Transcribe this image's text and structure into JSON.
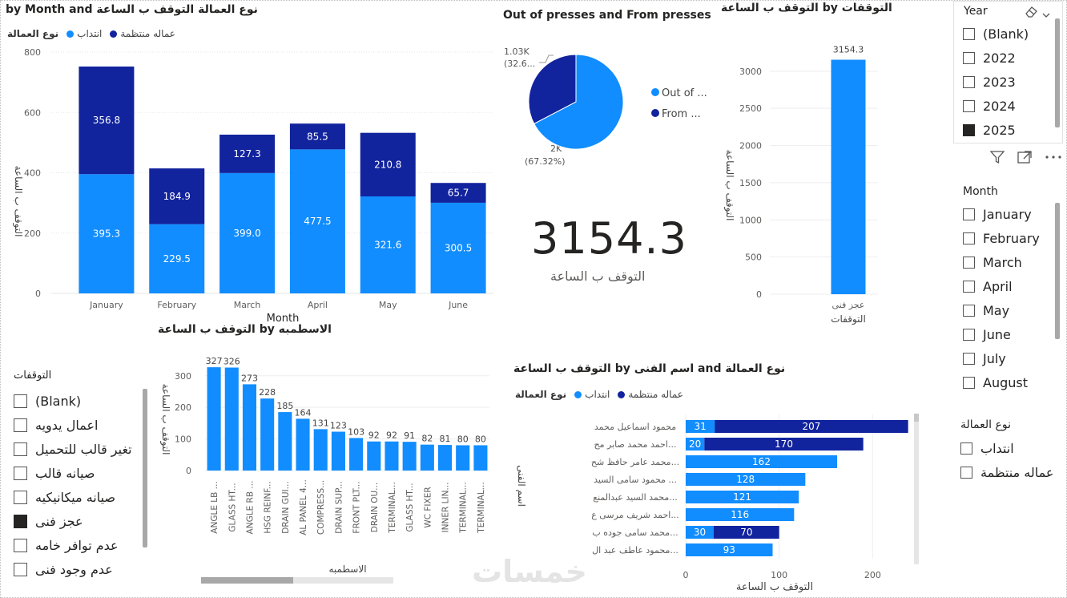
{
  "monthly_chart": {
    "title": "نوع العمالة التوقف ب الساعة by Month and",
    "legend_title": "نوع العمالة",
    "legend": [
      {
        "label": "انتداب",
        "color": "#118DFF"
      },
      {
        "label": "عماله منتظمة",
        "color": "#12239E"
      }
    ],
    "ylabel": "التوقف ب الساعة",
    "xlabel": "Month"
  },
  "pie_chart": {
    "title": "Out of presses and From presses",
    "legend": [
      {
        "label": "Out of ...",
        "color": "#118DFF"
      },
      {
        "label": "From ...",
        "color": "#12239E"
      }
    ],
    "label_from_value": "1.03K",
    "label_from_pct": "(32.6...",
    "label_out_value": "2K",
    "label_out_pct": "(67.32%)"
  },
  "kpi": {
    "value": "3154.3",
    "label": "التوقف ب الساعة"
  },
  "stops_chart": {
    "title": "التوقفات by التوقف ب الساعة",
    "ylabel": "التوقف ب الساعة",
    "xlabel": "التوقفات"
  },
  "molds_chart": {
    "title": "الاسطمبه by التوقف ب الساعة",
    "ylabel": "التوقف ب الساعة",
    "xlabel": "الاسطمبه"
  },
  "tech_chart": {
    "title": "نوع العمالة and اسم الفنى by التوقف ب الساعة",
    "legend_title": "نوع العمالة",
    "legend": [
      {
        "label": "انتداب",
        "color": "#118DFF"
      },
      {
        "label": "عماله منتظمة",
        "color": "#12239E"
      }
    ],
    "ylabel": "اسم الفنى",
    "xlabel": "التوقف ب الساعة"
  },
  "chart_data": [
    {
      "type": "bar",
      "stacked": true,
      "categories": [
        "January",
        "February",
        "March",
        "April",
        "May",
        "June"
      ],
      "series": [
        {
          "name": "انتداب",
          "values": [
            395.3,
            229.5,
            399.0,
            477.5,
            321.6,
            300.5
          ],
          "color": "#118DFF"
        },
        {
          "name": "عماله منتظمة",
          "values": [
            356.8,
            184.9,
            127.3,
            85.5,
            210.8,
            65.7
          ],
          "color": "#12239E"
        }
      ],
      "value_labels": [
        [
          "395.3",
          "229.5",
          "399.0",
          "477.5",
          "321.6",
          "300.5"
        ],
        [
          "356.8",
          "184.9",
          "127.3",
          "85.5",
          "210.8",
          "65.7"
        ]
      ],
      "yticks": [
        0,
        200,
        400,
        600,
        800
      ],
      "ylim": [
        0,
        800
      ]
    },
    {
      "type": "pie",
      "labels": [
        "Out of presses",
        "From presses"
      ],
      "values": [
        67.32,
        32.68
      ],
      "colors": [
        "#118DFF",
        "#12239E"
      ]
    },
    {
      "type": "bar",
      "categories": [
        "عجز فنى"
      ],
      "values": [
        3154.3
      ],
      "value_labels": [
        "3154.3"
      ],
      "yticks": [
        0,
        500,
        1000,
        1500,
        2000,
        2500,
        3000
      ],
      "ylim": [
        0,
        3300
      ],
      "color": "#118DFF"
    },
    {
      "type": "bar",
      "categories": [
        "ANGLE LB ...",
        "GLASS HT...",
        "ANGLE RB ...",
        "HSG REINF...",
        "DRAIN GUI...",
        "AL PANEL 4...",
        "COMPRESS...",
        "DRAIN SUP...",
        "FRONT PLT...",
        "DRAIN OU...",
        "TERMINAL...",
        "GLASS HT...",
        "WC FIXER",
        "INNER LIN...",
        "TERMINAL...",
        "TERMINAL..."
      ],
      "values": [
        327,
        326,
        273,
        228,
        185,
        164,
        131,
        123,
        103,
        92,
        92,
        91,
        82,
        81,
        80,
        80
      ],
      "yticks": [
        0,
        100,
        200,
        300
      ],
      "ylim": [
        0,
        340
      ],
      "color": "#118DFF"
    },
    {
      "type": "bar",
      "orientation": "horizontal",
      "stacked": true,
      "categories": [
        "محمود اسماعيل محمد",
        "احمد محمد صابر مح...",
        "محمد عامر حافظ شح...",
        "محمود سامى السيد ...",
        "محمد السيد عبدالمنع...",
        "احمد شريف مرسى ع...",
        "محمد سامى جوده ب...",
        "محمود عاطف عبد ال..."
      ],
      "series": [
        {
          "name": "انتداب",
          "values": [
            31,
            20,
            162,
            128,
            121,
            116,
            30,
            93
          ],
          "color": "#118DFF"
        },
        {
          "name": "عماله منتظمة",
          "values": [
            207,
            170,
            0,
            0,
            0,
            0,
            70,
            0
          ],
          "color": "#12239E"
        }
      ],
      "xticks": [
        0,
        100,
        200
      ],
      "xlim": [
        0,
        240
      ]
    }
  ],
  "year_slicer": {
    "title": "Year",
    "items": [
      {
        "label": "(Blank)",
        "checked": false
      },
      {
        "label": "2022",
        "checked": false
      },
      {
        "label": "2023",
        "checked": false
      },
      {
        "label": "2024",
        "checked": false
      },
      {
        "label": "2025",
        "checked": true
      }
    ]
  },
  "month_slicer": {
    "title": "Month",
    "items": [
      {
        "label": "January",
        "checked": false
      },
      {
        "label": "February",
        "checked": false
      },
      {
        "label": "March",
        "checked": false
      },
      {
        "label": "April",
        "checked": false
      },
      {
        "label": "May",
        "checked": false
      },
      {
        "label": "June",
        "checked": false
      },
      {
        "label": "July",
        "checked": false
      },
      {
        "label": "August",
        "checked": false
      }
    ]
  },
  "labor_slicer": {
    "title": "نوع العمالة",
    "items": [
      {
        "label": "انتداب",
        "checked": false
      },
      {
        "label": "عماله منتظمة",
        "checked": false
      }
    ]
  },
  "stops_slicer": {
    "title": "التوقفات",
    "items": [
      {
        "label": "(Blank)",
        "checked": false
      },
      {
        "label": "اعمال يدويه",
        "checked": false
      },
      {
        "label": "تغير قالب للتحميل",
        "checked": false
      },
      {
        "label": "صيانه قالب",
        "checked": false
      },
      {
        "label": "صيانه ميكانيكيه",
        "checked": false
      },
      {
        "label": "عجز فنى",
        "checked": true
      },
      {
        "label": "عدم توافر خامه",
        "checked": false
      },
      {
        "label": "عدم وجود فنى",
        "checked": false
      }
    ]
  },
  "watermark": "خمسات",
  "icons": {
    "eraser": "eraser-icon",
    "filter": "filter-icon",
    "focus": "focus-mode-icon",
    "more": "more-options-icon"
  }
}
